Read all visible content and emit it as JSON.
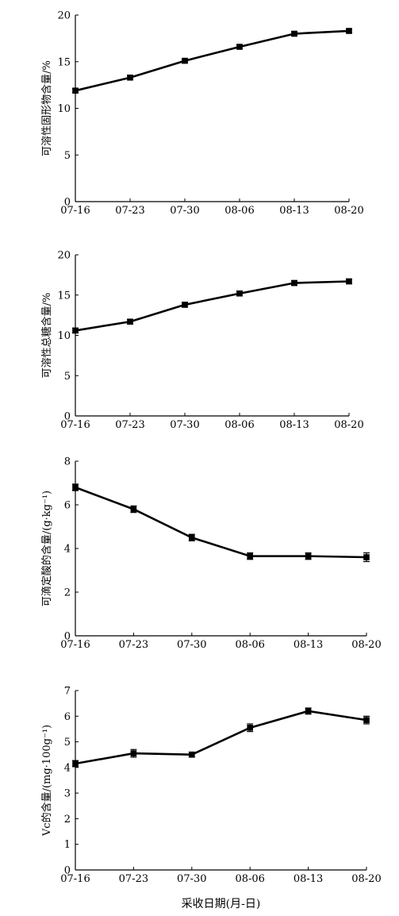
{
  "chart_data": [
    {
      "type": "line",
      "ylabel": "可溶性固形物含量/%",
      "xlabel": "",
      "categories": [
        "07-16",
        "07-23",
        "07-30",
        "08-06",
        "08-13",
        "08-20"
      ],
      "ylim": [
        0,
        20
      ],
      "yticks": [
        0,
        5,
        10,
        15,
        20
      ],
      "series": [
        {
          "values": [
            11.9,
            13.3,
            15.1,
            16.6,
            18.0,
            18.3
          ],
          "errors": [
            0.2,
            0.2,
            0.2,
            0.2,
            0.2,
            0.2
          ]
        }
      ],
      "grid": false
    },
    {
      "type": "line",
      "ylabel": "可溶性总糖含量/%",
      "xlabel": "",
      "categories": [
        "07-16",
        "07-23",
        "07-30",
        "08-06",
        "08-13",
        "08-20"
      ],
      "ylim": [
        0,
        20
      ],
      "yticks": [
        0,
        5,
        10,
        15,
        20
      ],
      "series": [
        {
          "values": [
            10.6,
            11.7,
            13.8,
            15.2,
            16.5,
            16.7
          ],
          "errors": [
            0.3,
            0.3,
            0.3,
            0.3,
            0.3,
            0.3
          ]
        }
      ],
      "grid": false
    },
    {
      "type": "line",
      "ylabel": "可滴定酸的含量/(g·kg⁻¹)",
      "xlabel": "",
      "categories": [
        "07-16",
        "07-23",
        "07-30",
        "08-06",
        "08-13",
        "08-20"
      ],
      "ylim": [
        0,
        8
      ],
      "yticks": [
        0,
        2,
        4,
        6,
        8
      ],
      "series": [
        {
          "values": [
            6.8,
            5.8,
            4.5,
            3.65,
            3.65,
            3.6
          ],
          "errors": [
            0.15,
            0.15,
            0.15,
            0.15,
            0.15,
            0.2
          ]
        }
      ],
      "grid": false
    },
    {
      "type": "line",
      "ylabel": "Vc的含量/(mg·100g⁻¹)",
      "xlabel": "采收日期(月-日)",
      "categories": [
        "07-16",
        "07-23",
        "07-30",
        "08-06",
        "08-13",
        "08-20"
      ],
      "ylim": [
        0,
        7
      ],
      "yticks": [
        0,
        1,
        2,
        3,
        4,
        5,
        6,
        7
      ],
      "series": [
        {
          "values": [
            4.15,
            4.55,
            4.5,
            5.55,
            6.2,
            5.85
          ],
          "errors": [
            0.12,
            0.15,
            0.1,
            0.15,
            0.12,
            0.15
          ]
        }
      ],
      "grid": false
    }
  ]
}
